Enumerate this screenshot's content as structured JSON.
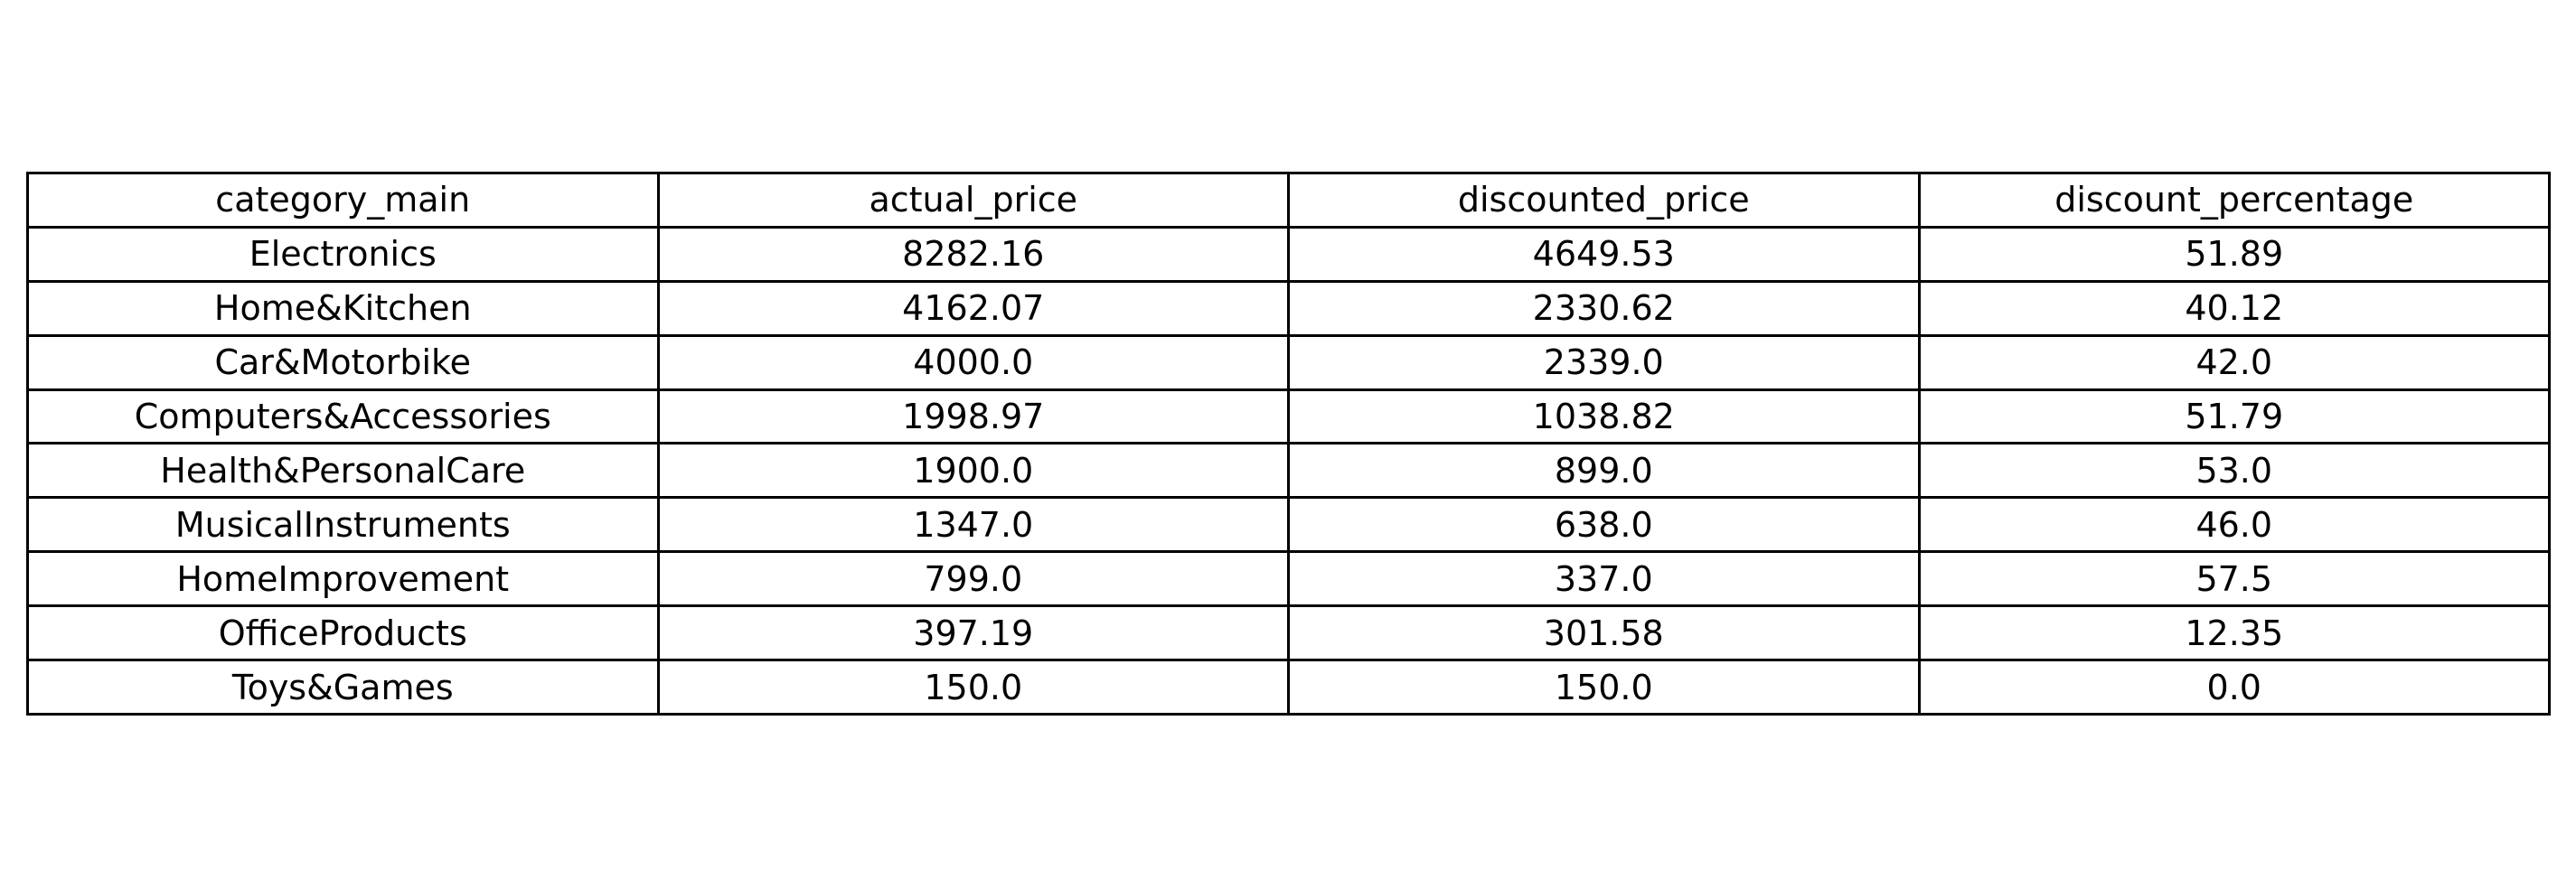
{
  "chart_data": {
    "type": "table",
    "columns": [
      "category_main",
      "actual_price",
      "discounted_price",
      "discount_percentage"
    ],
    "rows": [
      [
        "Electronics",
        "8282.16",
        "4649.53",
        "51.89"
      ],
      [
        "Home&Kitchen",
        "4162.07",
        "2330.62",
        "40.12"
      ],
      [
        "Car&Motorbike",
        "4000.0",
        "2339.0",
        "42.0"
      ],
      [
        "Computers&Accessories",
        "1998.97",
        "1038.82",
        "51.79"
      ],
      [
        "Health&PersonalCare",
        "1900.0",
        "899.0",
        "53.0"
      ],
      [
        "MusicalInstruments",
        "1347.0",
        "638.0",
        "46.0"
      ],
      [
        "HomeImprovement",
        "799.0",
        "337.0",
        "57.5"
      ],
      [
        "OfficeProducts",
        "397.19",
        "301.58",
        "12.35"
      ],
      [
        "Toys&Games",
        "150.0",
        "150.0",
        "0.0"
      ]
    ],
    "grid": true,
    "colors": {
      "background": "#ffffff",
      "border": "#000000",
      "text": "#000000"
    }
  }
}
